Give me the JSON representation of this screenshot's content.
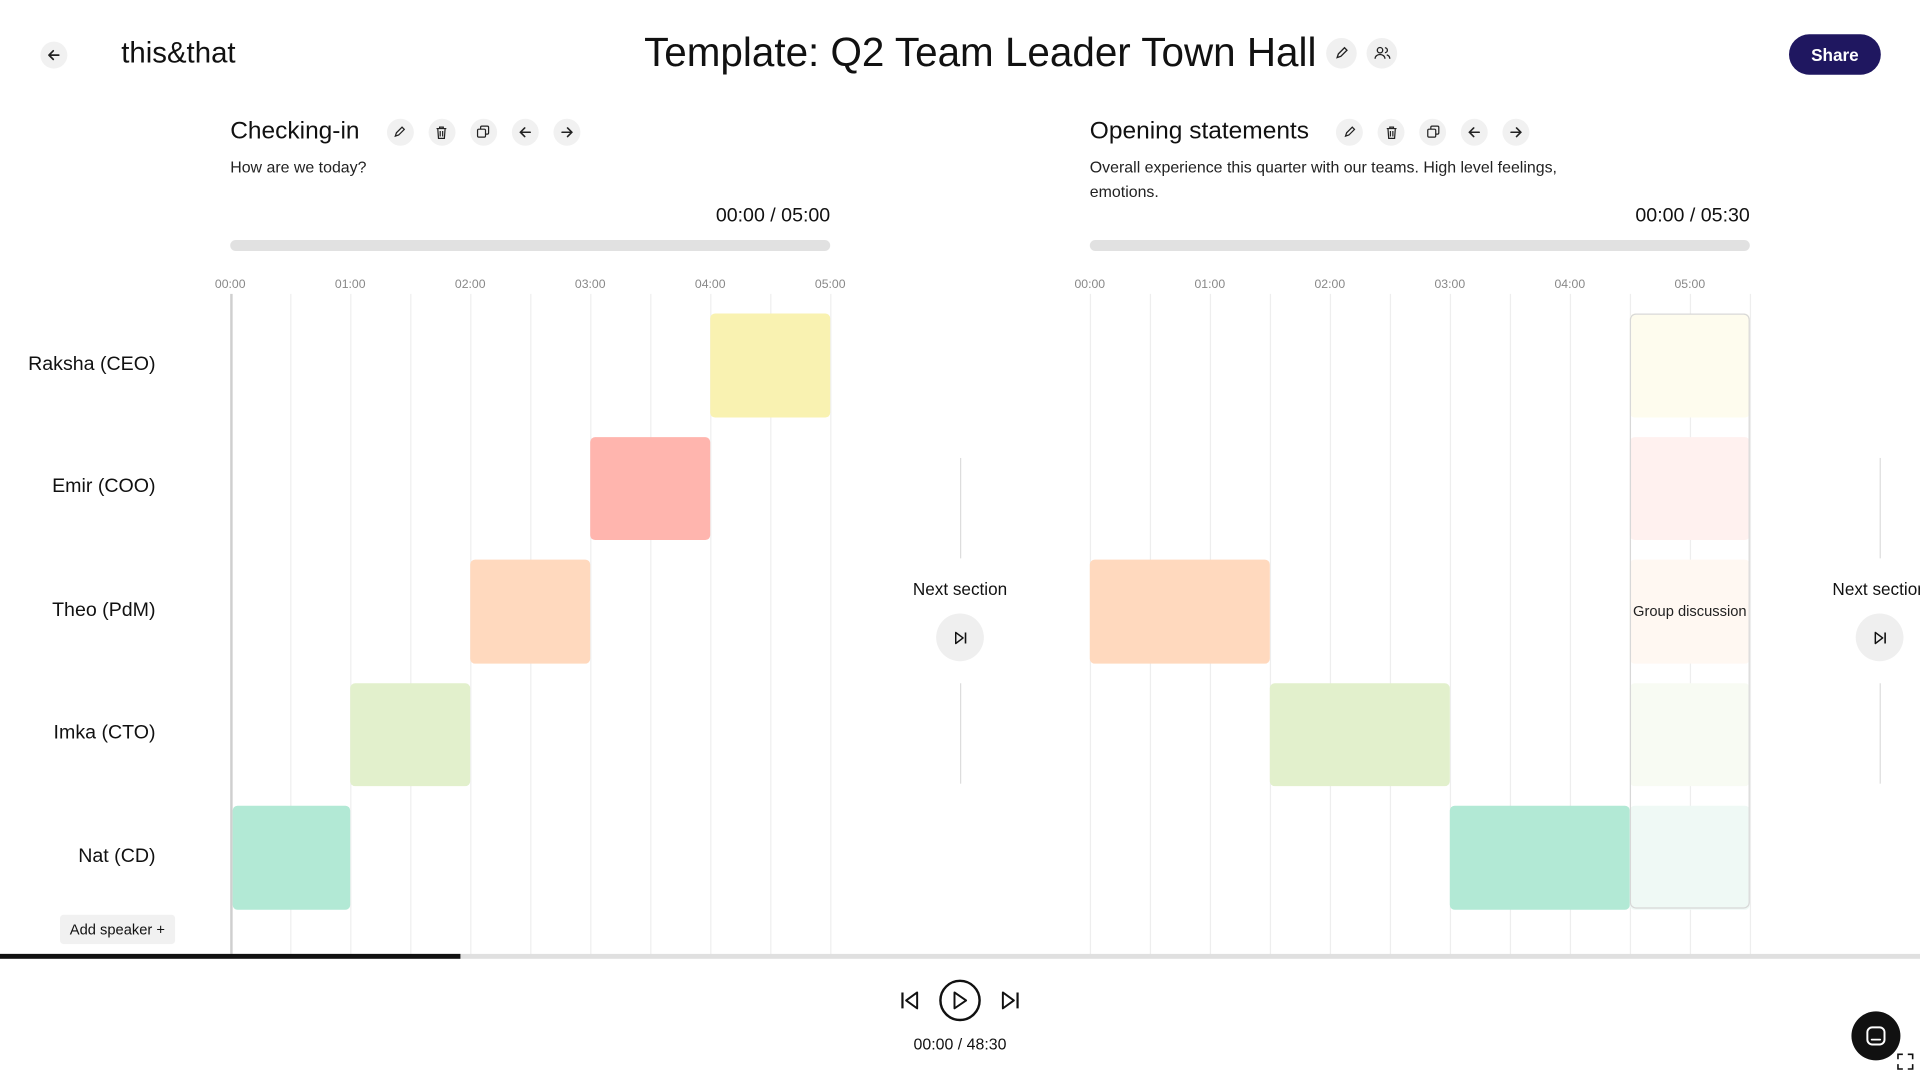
{
  "app": {
    "logo": "this&that",
    "title": "Template: Q2 Team Leader Town Hall",
    "share_label": "Share"
  },
  "speakers": [
    "Raksha (CEO)",
    "Emir (COO)",
    "Theo (PdM)",
    "Imka (CTO)",
    "Nat (CD)"
  ],
  "add_speaker_label": "Add speaker +",
  "next_section_label": "Next section",
  "group_discussion_label": "Group discussion",
  "sections": [
    {
      "title": "Checking-in",
      "description": "How are we today?",
      "time": "00:00 / 05:00",
      "ticks": [
        "00:00",
        "01:00",
        "02:00",
        "03:00",
        "04:00",
        "05:00"
      ]
    },
    {
      "title": "Opening statements",
      "description": "Overall experience this quarter with our teams. High level feelings, emotions.",
      "time": "00:00 / 05:30",
      "ticks": [
        "00:00",
        "01:00",
        "02:00",
        "03:00",
        "04:00",
        "05:00"
      ]
    }
  ],
  "playback": {
    "total_time": "00:00 / 48:30",
    "progress": 0.24
  },
  "colors": {
    "yellow": "#f9f2b1",
    "red": "#ffb5ae",
    "peach": "#ffd9be",
    "green": "#e2f0cc",
    "teal": "#b2e9d5",
    "brand": "#1f1760"
  }
}
